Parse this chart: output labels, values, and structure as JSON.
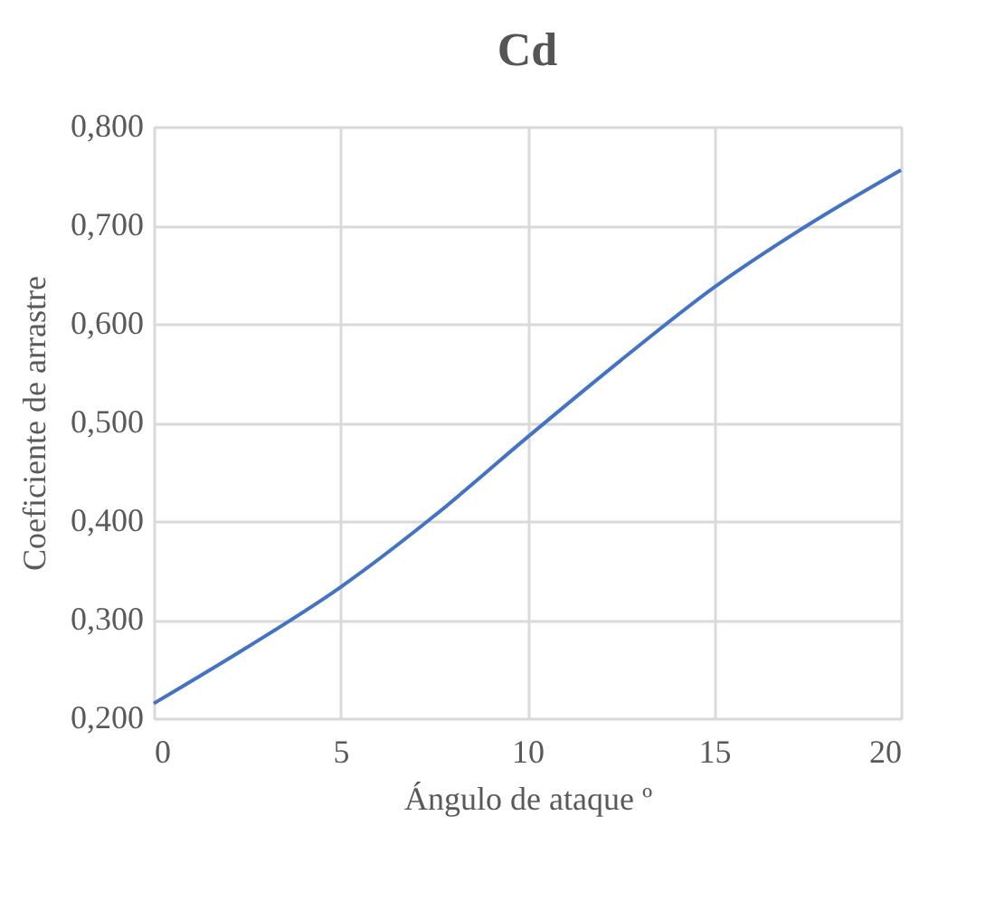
{
  "chart_data": {
    "type": "line",
    "title": "Cd",
    "xlabel": "Ángulo de ataque º",
    "ylabel": "Coeficiente de arrastre",
    "x": [
      0,
      2.5,
      5,
      7.5,
      10,
      12.5,
      15,
      17.5,
      20
    ],
    "series": [
      {
        "color": "#4472c4",
        "values": [
          0.215,
          0.272,
          0.333,
          0.405,
          0.485,
          0.563,
          0.637,
          0.7,
          0.756
        ]
      }
    ],
    "xlim": [
      0,
      20
    ],
    "xticks": [
      0,
      5,
      10,
      15,
      20
    ],
    "ylim": [
      0.2,
      0.8
    ],
    "yticks": [
      {
        "value": 0.2,
        "label": "0,200"
      },
      {
        "value": 0.3,
        "label": "0,300"
      },
      {
        "value": 0.4,
        "label": "0,400"
      },
      {
        "value": 0.5,
        "label": "0,500"
      },
      {
        "value": 0.6,
        "label": "0,600"
      },
      {
        "value": 0.7,
        "label": "0,700"
      },
      {
        "value": 0.8,
        "label": "0,800"
      }
    ],
    "grid": true,
    "marker": "none",
    "line_style": "solid"
  }
}
